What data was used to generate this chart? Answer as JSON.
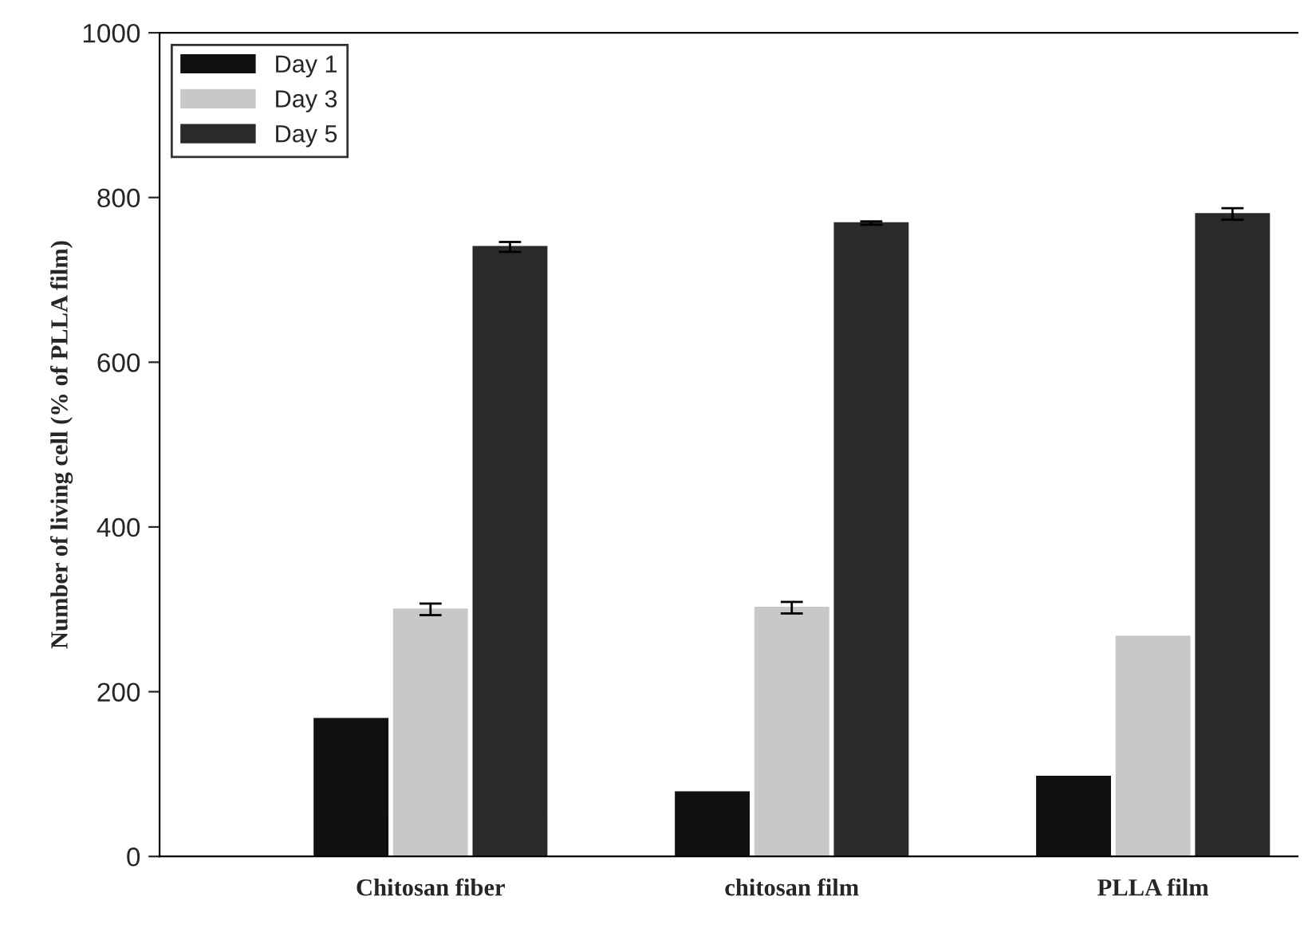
{
  "chart_data": {
    "type": "bar",
    "ylabel": "Number of living cell (% of PLLA film)",
    "categories": [
      "Chitosan fiber",
      "chitosan film",
      "PLLA film"
    ],
    "series": [
      {
        "name": "Day 1",
        "color": "#111111",
        "values": [
          167,
          78,
          97
        ]
      },
      {
        "name": "Day 3",
        "color": "#c8c8c8",
        "values": [
          300,
          302,
          267
        ],
        "errors": [
          7,
          7,
          null
        ]
      },
      {
        "name": "Day 5",
        "color": "#2a2a2a",
        "values": [
          740,
          769,
          780
        ],
        "errors": [
          6,
          2,
          7
        ]
      }
    ],
    "ylim": [
      0,
      1000
    ],
    "yticks": [
      0,
      200,
      400,
      600,
      800,
      1000
    ],
    "grid": false,
    "legend": "top left"
  }
}
